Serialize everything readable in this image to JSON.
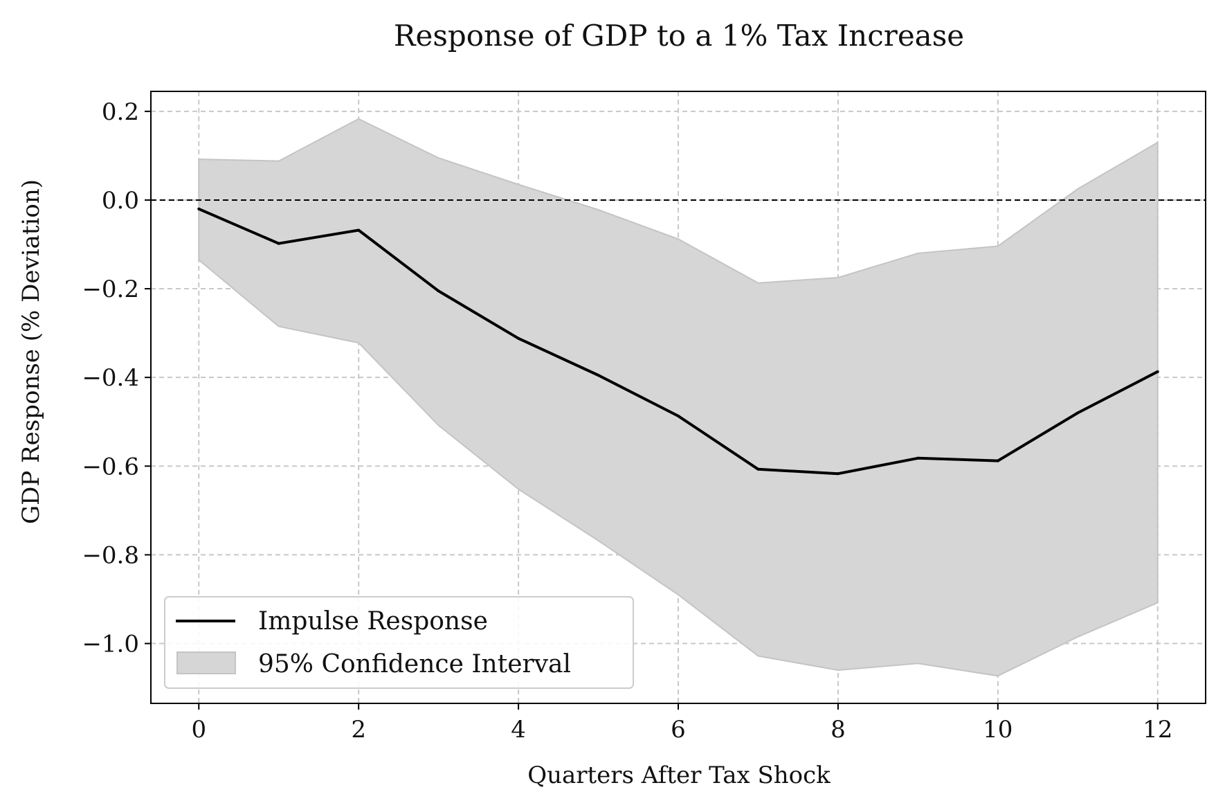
{
  "chart_data": {
    "type": "line",
    "title": "Response of GDP to a 1% Tax Increase",
    "xlabel": "Quarters After Tax Shock",
    "ylabel": "GDP Response (% Deviation)",
    "xlim": [
      -0.6,
      12.6
    ],
    "ylim": [
      -1.135,
      0.245
    ],
    "xticks": [
      0,
      2,
      4,
      6,
      8,
      10,
      12
    ],
    "xtick_labels": [
      "0",
      "2",
      "4",
      "6",
      "8",
      "10",
      "12"
    ],
    "yticks": [
      0.2,
      0.0,
      -0.2,
      -0.4,
      -0.6,
      -0.8,
      -1.0
    ],
    "ytick_labels": [
      "0.2",
      "0.0",
      "−0.2",
      "−0.4",
      "−0.6",
      "−0.8",
      "−1.0"
    ],
    "grid": true,
    "reference_line": 0.0,
    "x": [
      0,
      1,
      2,
      3,
      4,
      5,
      6,
      7,
      8,
      9,
      10,
      11,
      12
    ],
    "series": [
      {
        "name": "Impulse Response",
        "values": [
          -0.02,
          -0.098,
          -0.068,
          -0.205,
          -0.312,
          -0.395,
          -0.487,
          -0.607,
          -0.617,
          -0.582,
          -0.588,
          -0.48,
          -0.387
        ],
        "color": "#000000"
      }
    ],
    "band": {
      "name": "95% Confidence Interval",
      "upper": [
        0.092,
        0.088,
        0.183,
        0.095,
        0.035,
        -0.022,
        -0.088,
        -0.187,
        -0.175,
        -0.12,
        -0.104,
        0.025,
        0.13
      ],
      "lower": [
        -0.135,
        -0.285,
        -0.322,
        -0.508,
        -0.652,
        -0.768,
        -0.89,
        -1.028,
        -1.06,
        -1.045,
        -1.073,
        -0.985,
        -0.908
      ],
      "color": "#d6d6d6"
    },
    "legend_position": "lower-left"
  }
}
